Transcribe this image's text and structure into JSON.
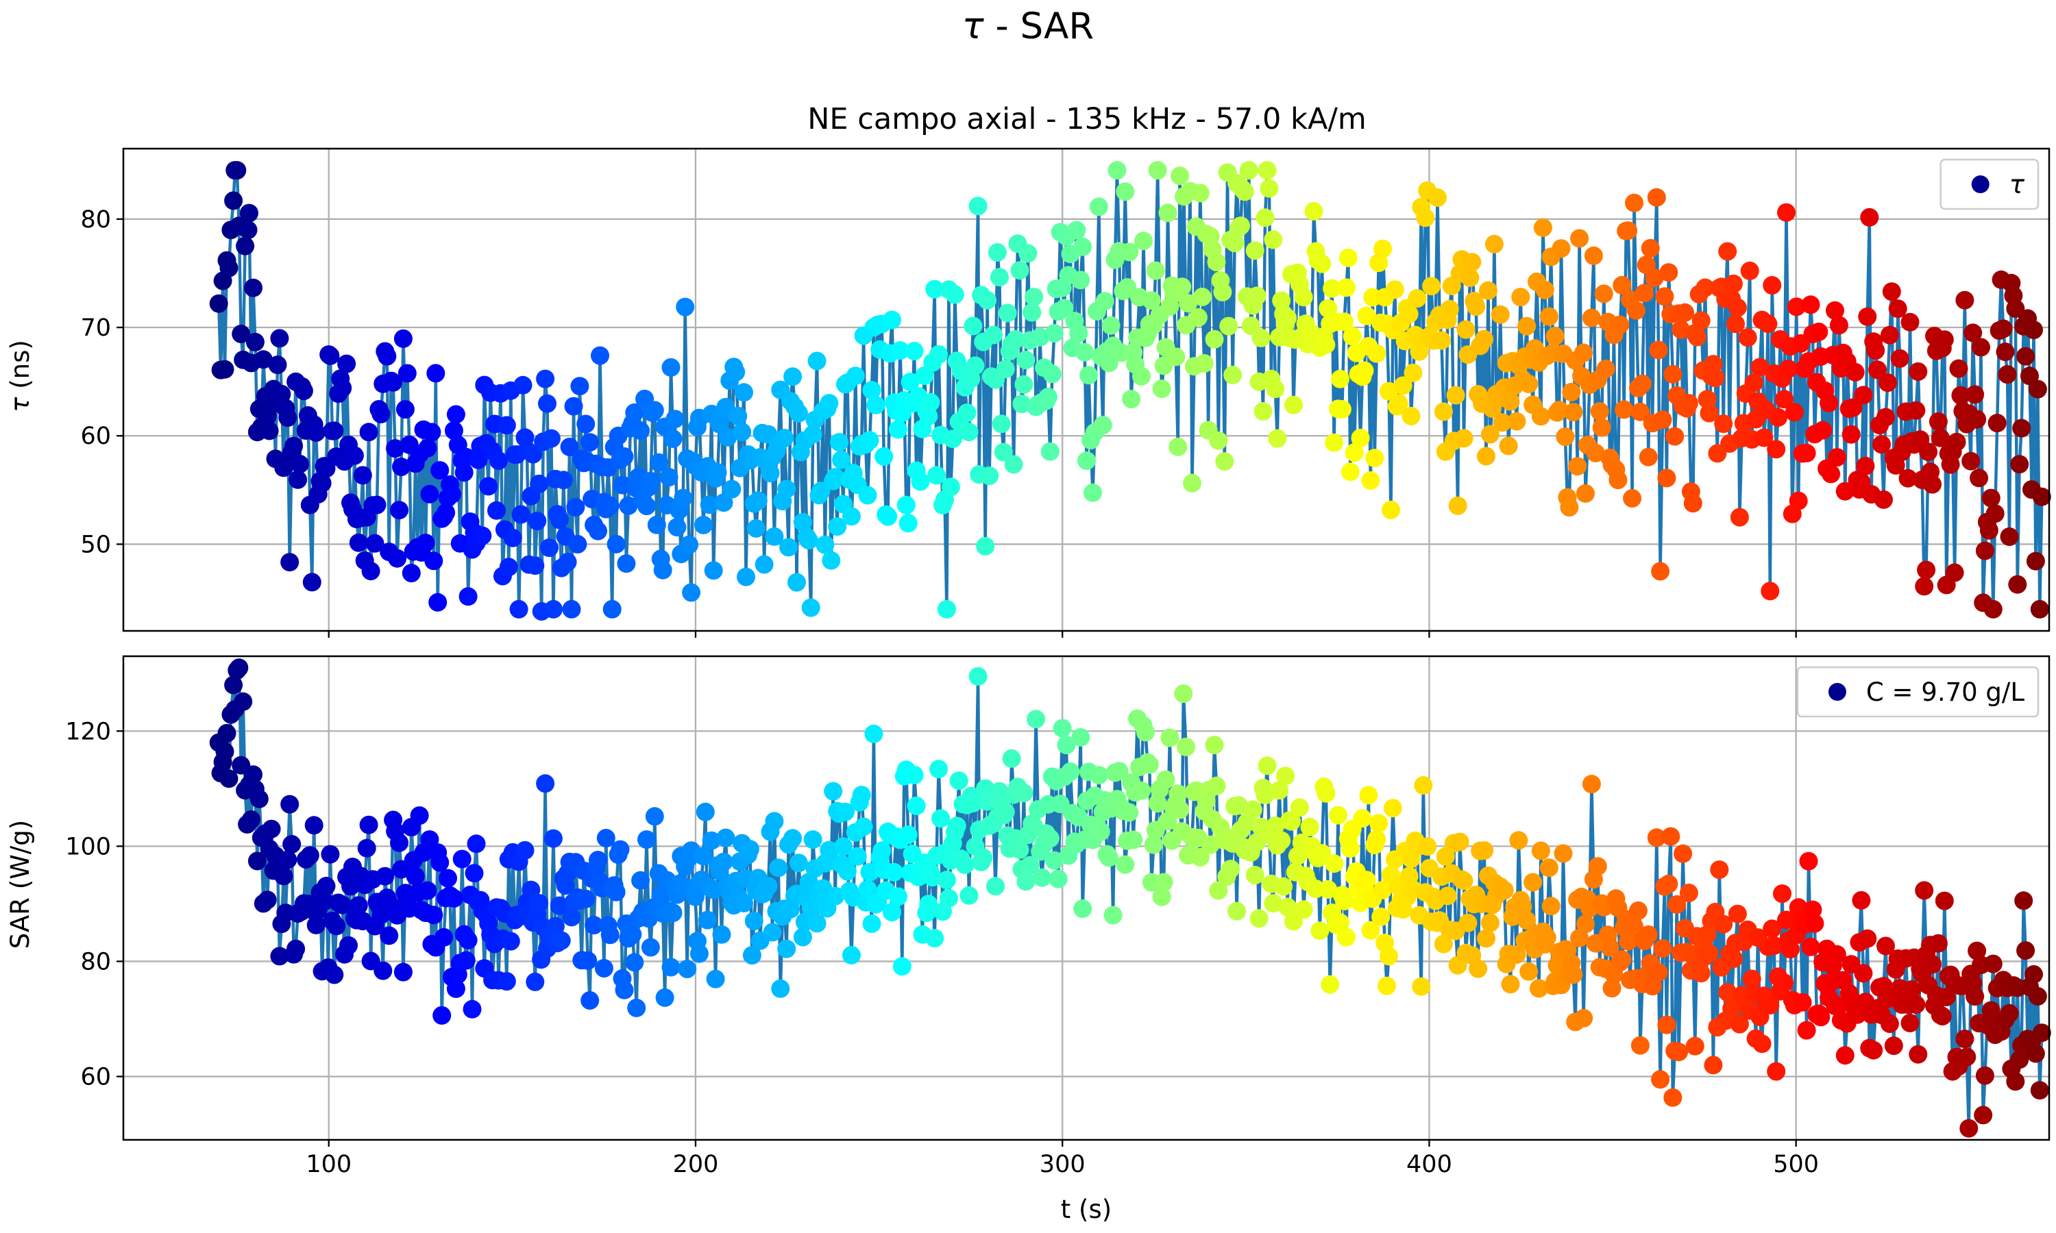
{
  "figure": {
    "suptitle_symbol": "τ",
    "suptitle_rest": " - SAR",
    "title": "NE campo axial - 135 kHz - 57.0 kA/m"
  },
  "colors": {
    "line": "#1f77b4",
    "legend_marker": "#00008f",
    "grid": "#b0b0b0",
    "colormap": "jet"
  },
  "chart_data": [
    {
      "type": "scatter",
      "panel": "tau",
      "title": "NE campo axial - 135 kHz - 57.0 kA/m",
      "xlabel": "",
      "ylabel_symbol": "τ",
      "ylabel_rest": " (ns)",
      "xlim": [
        44,
        569
      ],
      "ylim": [
        42,
        86.5
      ],
      "xticks": [
        100,
        200,
        300,
        400,
        500
      ],
      "xtick_labels": [
        "",
        "",
        "",
        "",
        ""
      ],
      "yticks": [
        50,
        60,
        70,
        80
      ],
      "ytick_labels": [
        "50",
        "60",
        "70",
        "80"
      ],
      "grid": true,
      "legend_position": "upper right",
      "series": [
        {
          "name": "τ",
          "marker_color": "jet colormap by time",
          "line_color": "#1f77b4",
          "x_range": [
            70,
            567
          ],
          "points_approx": 900,
          "trend": [
            [
              70,
              69.5
            ],
            [
              75,
              81.5
            ],
            [
              80,
              65
            ],
            [
              90,
              59
            ],
            [
              100,
              58
            ],
            [
              120,
              58
            ],
            [
              140,
              56
            ],
            [
              160,
              55
            ],
            [
              180,
              56
            ],
            [
              200,
              57
            ],
            [
              220,
              57
            ],
            [
              240,
              59
            ],
            [
              260,
              63
            ],
            [
              280,
              66
            ],
            [
              300,
              69
            ],
            [
              320,
              71
            ],
            [
              340,
              72
            ],
            [
              360,
              71
            ],
            [
              380,
              70
            ],
            [
              400,
              69
            ],
            [
              420,
              68
            ],
            [
              440,
              67
            ],
            [
              460,
              66
            ],
            [
              480,
              65
            ],
            [
              500,
              64
            ],
            [
              520,
              62
            ],
            [
              540,
              61
            ],
            [
              560,
              60
            ],
            [
              567,
              59
            ]
          ],
          "scatter_sd": 6.5,
          "notable_points": [
            [
              70,
              72.2
            ],
            [
              74,
              81.7
            ],
            [
              78,
              79
            ],
            [
              100,
              67.5
            ],
            [
              158,
              43.8
            ],
            [
              277,
              81.2
            ],
            [
              332,
              84.0
            ],
            [
              345,
              84.3
            ],
            [
              349,
              82.8
            ],
            [
              462,
              82.0
            ],
            [
              463,
              47.5
            ],
            [
              551,
              44.6
            ]
          ]
        }
      ]
    },
    {
      "type": "scatter",
      "panel": "sar",
      "title": "",
      "xlabel": "t (s)",
      "ylabel": "SAR (W/g)",
      "xlim": [
        44,
        569
      ],
      "ylim": [
        49,
        133
      ],
      "xticks": [
        100,
        200,
        300,
        400,
        500
      ],
      "xtick_labels": [
        "100",
        "200",
        "300",
        "400",
        "500"
      ],
      "yticks": [
        60,
        80,
        100,
        120
      ],
      "ytick_labels": [
        "60",
        "80",
        "100",
        "120"
      ],
      "grid": true,
      "legend_position": "upper right",
      "series": [
        {
          "name": "C = 9.70 g/L",
          "marker_color": "jet colormap by time",
          "line_color": "#1f77b4",
          "x_range": [
            70,
            567
          ],
          "points_approx": 900,
          "trend": [
            [
              70,
              113
            ],
            [
              75,
              126
            ],
            [
              80,
              104
            ],
            [
              90,
              92
            ],
            [
              100,
              89
            ],
            [
              120,
              88
            ],
            [
              140,
              87
            ],
            [
              160,
              88
            ],
            [
              180,
              89
            ],
            [
              200,
              92
            ],
            [
              220,
              93
            ],
            [
              240,
              95
            ],
            [
              260,
              98
            ],
            [
              280,
              102
            ],
            [
              300,
              106
            ],
            [
              320,
              107
            ],
            [
              340,
              103
            ],
            [
              360,
              98
            ],
            [
              380,
              94
            ],
            [
              400,
              91
            ],
            [
              420,
              88
            ],
            [
              440,
              85
            ],
            [
              460,
              82
            ],
            [
              480,
              80
            ],
            [
              500,
              78
            ],
            [
              520,
              76
            ],
            [
              540,
              73
            ],
            [
              560,
              71
            ],
            [
              567,
              70
            ]
          ],
          "scatter_sd": 7.5,
          "notable_points": [
            [
              70,
              118
            ],
            [
              74,
              128
            ],
            [
              277,
              129.5
            ],
            [
              300,
              120.5
            ],
            [
              322,
              121
            ],
            [
              333,
              126.5
            ],
            [
              462,
              101.5
            ],
            [
              463,
              59.5
            ],
            [
              551,
              53.3
            ]
          ]
        }
      ]
    }
  ]
}
